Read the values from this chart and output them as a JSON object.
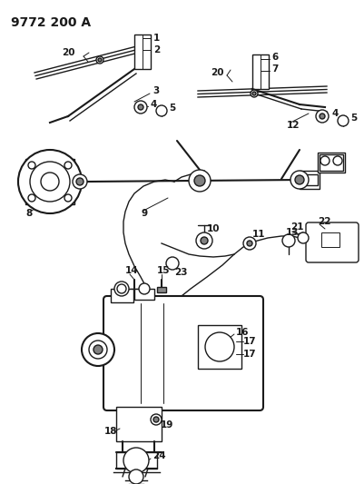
{
  "title": "9772 200 A",
  "bg_color": "#ffffff",
  "line_color": "#1a1a1a",
  "label_color": "#1a1a1a",
  "title_fontsize": 10,
  "label_fontsize": 7.5,
  "figsize": [
    4.01,
    5.33
  ],
  "dpi": 100
}
